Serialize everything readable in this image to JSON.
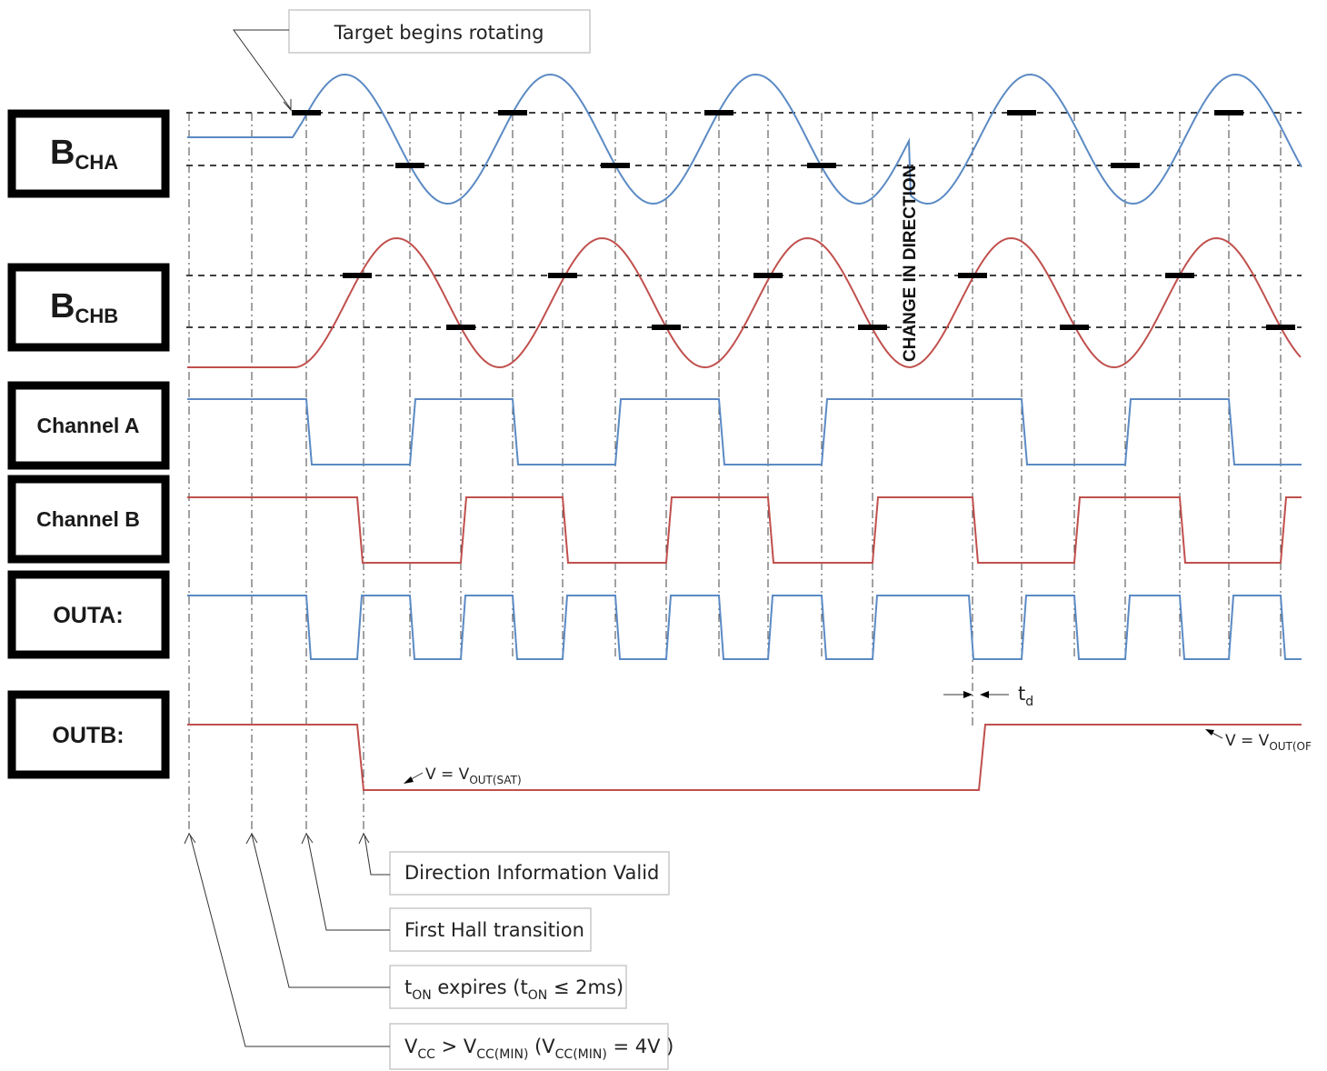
{
  "labels": {
    "bcha_main": "B",
    "bcha_sub": "CHA",
    "bchb_main": "B",
    "bchb_sub": "CHB",
    "channel_a": "Channel A",
    "channel_b": "Channel B",
    "outa": "OUTA:",
    "outb": "OUTB:"
  },
  "annotations": {
    "target_rotating": "Target begins rotating",
    "change_direction": "CHANGE IN DIRECTION",
    "td_main": "t",
    "td_sub": "d",
    "v_sat_prefix": "V = V",
    "v_sat_sub": "OUT(SAT)",
    "v_off_prefix": "V = V",
    "v_off_sub": "OUT(OF"
  },
  "legend": {
    "direction_valid": "Direction Information  Valid",
    "first_hall": "First Hall transition",
    "ton_a": "t",
    "ton_b": "ON",
    "ton_c": " expires  (t",
    "ton_d": "ON",
    "ton_e": "  ≤ 2ms)",
    "vcc_a": "V",
    "vcc_b": "CC",
    "vcc_c": " > V",
    "vcc_d": "CC(MIN)",
    "vcc_e": " (V",
    "vcc_f": "CC(MIN)",
    "vcc_g": " = 4V )"
  },
  "colors": {
    "channel_a": "#5b8ac4",
    "channel_b": "#c0504d"
  }
}
